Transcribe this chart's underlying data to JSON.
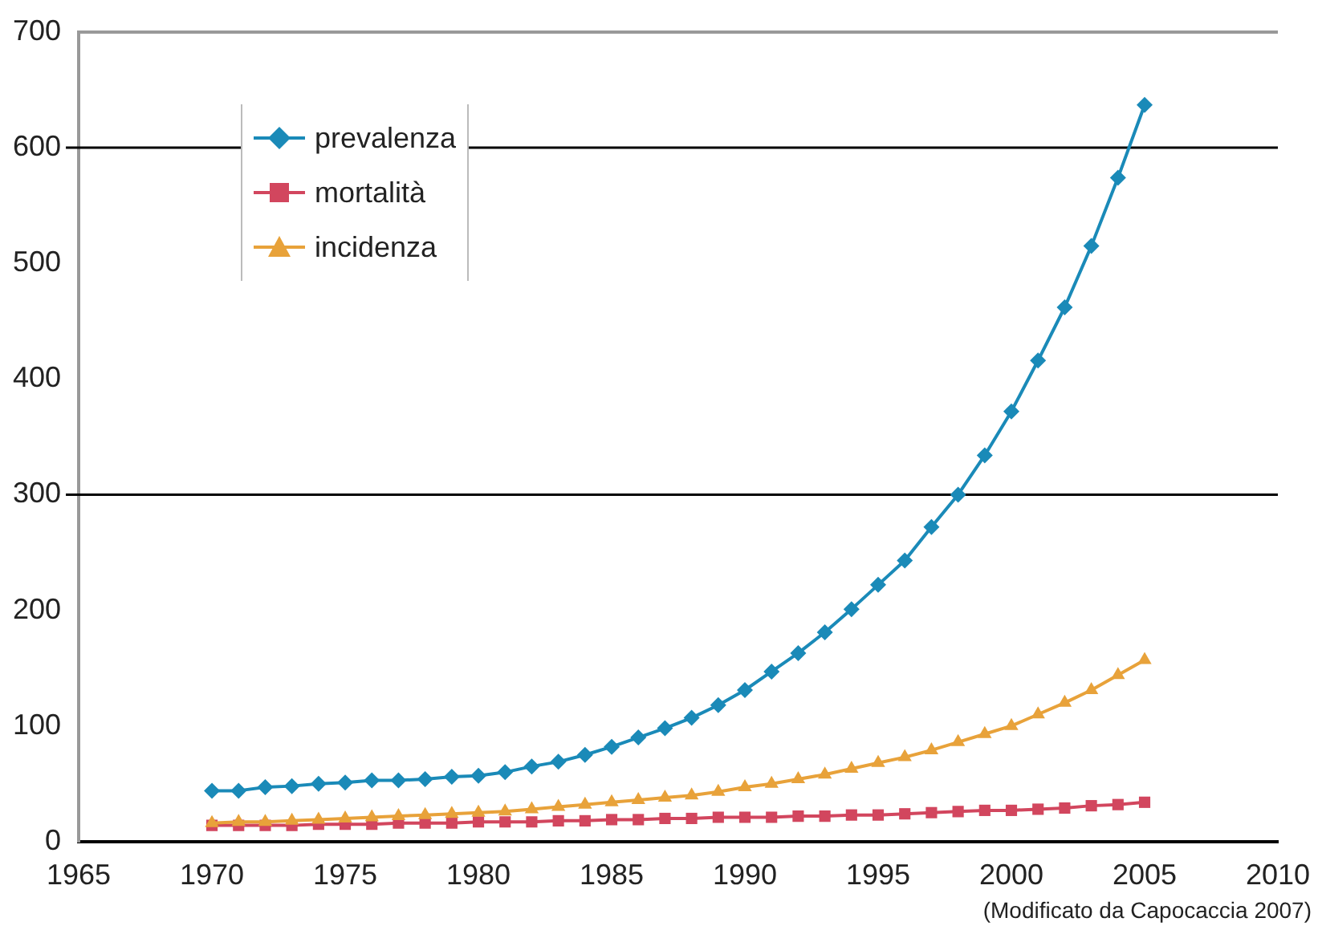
{
  "chart_data": {
    "type": "line",
    "x": [
      1970,
      1971,
      1972,
      1973,
      1974,
      1975,
      1976,
      1977,
      1978,
      1979,
      1980,
      1981,
      1982,
      1983,
      1984,
      1985,
      1986,
      1987,
      1988,
      1989,
      1990,
      1991,
      1992,
      1993,
      1994,
      1995,
      1996,
      1997,
      1998,
      1999,
      2000,
      2001,
      2002,
      2003,
      2004,
      2005
    ],
    "series": [
      {
        "name": "prevalenza",
        "color": "#1a8ab8",
        "marker": "diamond",
        "values": [
          44,
          44,
          47,
          48,
          50,
          51,
          53,
          53,
          54,
          56,
          57,
          60,
          65,
          69,
          75,
          82,
          90,
          98,
          107,
          118,
          131,
          147,
          163,
          181,
          201,
          222,
          243,
          272,
          300,
          334,
          372,
          416,
          462,
          515,
          574,
          637
        ]
      },
      {
        "name": "mortalità",
        "color": "#d2465e",
        "marker": "square",
        "values": [
          14,
          14,
          14,
          14,
          15,
          15,
          15,
          16,
          16,
          16,
          17,
          17,
          17,
          18,
          18,
          19,
          19,
          20,
          20,
          21,
          21,
          21,
          22,
          22,
          23,
          23,
          24,
          25,
          26,
          27,
          27,
          28,
          29,
          31,
          32,
          34
        ]
      },
      {
        "name": "incidenza",
        "color": "#e8a23a",
        "marker": "triangle",
        "values": [
          16,
          17,
          17,
          18,
          19,
          20,
          21,
          22,
          23,
          24,
          25,
          26,
          28,
          30,
          32,
          34,
          36,
          38,
          40,
          43,
          47,
          50,
          54,
          58,
          63,
          68,
          73,
          79,
          86,
          93,
          100,
          110,
          120,
          131,
          144,
          157
        ]
      }
    ],
    "xlim": [
      1965,
      2010
    ],
    "xticks": [
      1965,
      1970,
      1975,
      1980,
      1985,
      1990,
      1995,
      2000,
      2005,
      2010
    ],
    "ylim": [
      0,
      700
    ],
    "yticks": [
      0,
      100,
      200,
      300,
      400,
      500,
      600,
      700
    ],
    "grid": false,
    "legend": "top left",
    "ref_lines": [
      {
        "axis": "y",
        "value": 300
      },
      {
        "axis": "y",
        "value": 600
      }
    ],
    "annotations": [
      "(Modificato da Capocaccia 2007)"
    ]
  }
}
